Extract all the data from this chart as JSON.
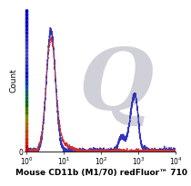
{
  "ylabel": "Count",
  "xlabel": "Mouse CD11b (M1/70) redFluor™ 710",
  "xmin": 1.0,
  "xmax": 10000.0,
  "ymin": 0,
  "solid_color": "#3333bb",
  "dashed_color": "#cc3333",
  "bg_color": "#ffffff",
  "plot_bg": "#f0f0f0",
  "watermark_color": "#d0d0d8",
  "ylabel_fontsize": 6.5,
  "xlabel_fontsize": 6.5,
  "tick_fontsize": 5.5,
  "spine_colors": [
    "#cc0000",
    "#aa0044",
    "#880088",
    "#4400aa",
    "#0000cc",
    "#0000cc",
    "#0000cc",
    "#0000cc",
    "#0000cc",
    "#0000cc",
    "#0000cc",
    "#0000cc",
    "#0000cc",
    "#0000cc",
    "#0000cc",
    "#0000cc",
    "#0000cc",
    "#0000cc",
    "#0000cc",
    "#0000cc"
  ]
}
